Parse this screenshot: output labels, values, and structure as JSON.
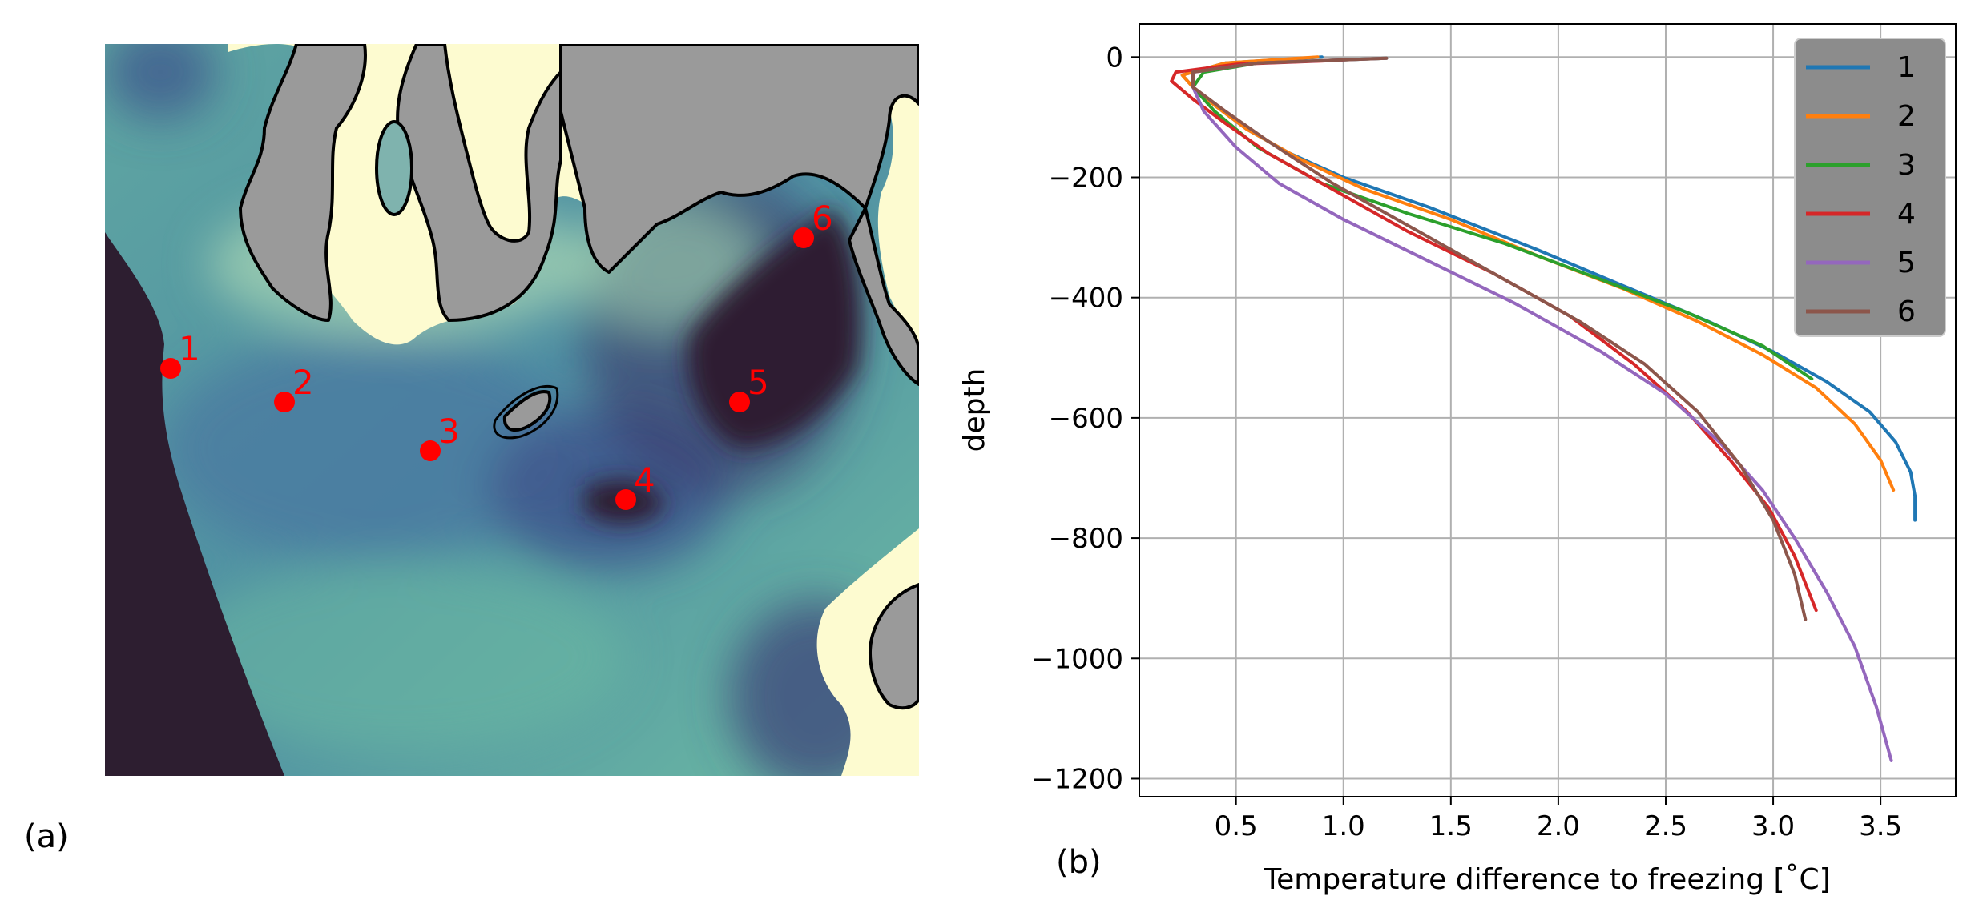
{
  "panels": {
    "a_label": "(a)",
    "b_label": "(b)"
  },
  "map": {
    "colors": {
      "land": "#9a9a9a",
      "deep": "#2d1e30",
      "mid": "#5b9fa0",
      "shallow": "#fdfbd0",
      "station_marker": "#ff0000",
      "coastline": "#000000"
    },
    "stations": [
      "1",
      "2",
      "3",
      "4",
      "5",
      "6"
    ]
  },
  "chart_data": {
    "type": "line",
    "title": "",
    "xlabel": "Temperature difference to freezing [˚C]",
    "ylabel": "depth",
    "xlim": [
      0.05,
      3.85
    ],
    "ylim": [
      -1230,
      55
    ],
    "xticks": [
      0.5,
      1.0,
      1.5,
      2.0,
      2.5,
      3.0,
      3.5
    ],
    "xtick_labels": [
      "0.5",
      "1.0",
      "1.5",
      "2.0",
      "2.5",
      "3.0",
      "3.5"
    ],
    "yticks": [
      0,
      -200,
      -400,
      -600,
      -800,
      -1000,
      -1200
    ],
    "ytick_labels": [
      "0",
      "−200",
      "−400",
      "−600",
      "−800",
      "−1000",
      "−1200"
    ],
    "grid": true,
    "legend_position": "top-right",
    "series": [
      {
        "name": "1",
        "color": "#1f77b4",
        "points": [
          [
            0.9,
            0
          ],
          [
            0.45,
            -10
          ],
          [
            0.25,
            -30
          ],
          [
            0.3,
            -50
          ],
          [
            0.4,
            -80
          ],
          [
            0.55,
            -120
          ],
          [
            0.75,
            -160
          ],
          [
            1.0,
            -200
          ],
          [
            1.4,
            -250
          ],
          [
            1.9,
            -320
          ],
          [
            2.3,
            -380
          ],
          [
            2.7,
            -440
          ],
          [
            3.0,
            -490
          ],
          [
            3.25,
            -540
          ],
          [
            3.45,
            -590
          ],
          [
            3.57,
            -640
          ],
          [
            3.64,
            -690
          ],
          [
            3.66,
            -730
          ],
          [
            3.66,
            -770
          ]
        ]
      },
      {
        "name": "2",
        "color": "#ff7f0e",
        "points": [
          [
            0.88,
            0
          ],
          [
            0.45,
            -10
          ],
          [
            0.25,
            -30
          ],
          [
            0.3,
            -50
          ],
          [
            0.4,
            -80
          ],
          [
            0.55,
            -120
          ],
          [
            0.8,
            -170
          ],
          [
            1.1,
            -220
          ],
          [
            1.5,
            -270
          ],
          [
            1.9,
            -330
          ],
          [
            2.3,
            -385
          ],
          [
            2.65,
            -440
          ],
          [
            2.95,
            -495
          ],
          [
            3.2,
            -550
          ],
          [
            3.38,
            -610
          ],
          [
            3.5,
            -670
          ],
          [
            3.56,
            -720
          ]
        ]
      },
      {
        "name": "3",
        "color": "#2ca02c",
        "points": [
          [
            1.2,
            -2
          ],
          [
            0.6,
            -10
          ],
          [
            0.35,
            -25
          ],
          [
            0.3,
            -50
          ],
          [
            0.4,
            -90
          ],
          [
            0.6,
            -150
          ],
          [
            0.9,
            -210
          ],
          [
            1.3,
            -260
          ],
          [
            1.75,
            -310
          ],
          [
            2.2,
            -370
          ],
          [
            2.6,
            -425
          ],
          [
            2.95,
            -480
          ],
          [
            3.18,
            -535
          ]
        ]
      },
      {
        "name": "4",
        "color": "#d62728",
        "points": [
          [
            1.0,
            -5
          ],
          [
            0.5,
            -12
          ],
          [
            0.22,
            -25
          ],
          [
            0.2,
            -40
          ],
          [
            0.3,
            -70
          ],
          [
            0.45,
            -110
          ],
          [
            0.65,
            -160
          ],
          [
            0.95,
            -220
          ],
          [
            1.3,
            -290
          ],
          [
            1.7,
            -360
          ],
          [
            2.05,
            -430
          ],
          [
            2.35,
            -510
          ],
          [
            2.6,
            -590
          ],
          [
            2.8,
            -670
          ],
          [
            2.98,
            -750
          ],
          [
            3.1,
            -830
          ],
          [
            3.2,
            -920
          ]
        ]
      },
      {
        "name": "5",
        "color": "#9467bd",
        "points": [
          [
            1.2,
            -2
          ],
          [
            0.6,
            -10
          ],
          [
            0.3,
            -25
          ],
          [
            0.3,
            -50
          ],
          [
            0.35,
            -90
          ],
          [
            0.5,
            -150
          ],
          [
            0.7,
            -210
          ],
          [
            1.0,
            -270
          ],
          [
            1.4,
            -340
          ],
          [
            1.8,
            -410
          ],
          [
            2.2,
            -490
          ],
          [
            2.5,
            -560
          ],
          [
            2.75,
            -640
          ],
          [
            2.95,
            -720
          ],
          [
            3.1,
            -800
          ],
          [
            3.25,
            -890
          ],
          [
            3.38,
            -980
          ],
          [
            3.48,
            -1080
          ],
          [
            3.55,
            -1170
          ]
        ]
      },
      {
        "name": "6",
        "color": "#8c564b",
        "points": [
          [
            1.2,
            -2
          ],
          [
            0.6,
            -10
          ],
          [
            0.3,
            -25
          ],
          [
            0.3,
            -50
          ],
          [
            0.45,
            -90
          ],
          [
            0.65,
            -140
          ],
          [
            0.95,
            -210
          ],
          [
            1.3,
            -280
          ],
          [
            1.7,
            -360
          ],
          [
            2.1,
            -440
          ],
          [
            2.4,
            -510
          ],
          [
            2.65,
            -590
          ],
          [
            2.85,
            -680
          ],
          [
            3.0,
            -770
          ],
          [
            3.1,
            -860
          ],
          [
            3.15,
            -935
          ]
        ]
      }
    ]
  }
}
